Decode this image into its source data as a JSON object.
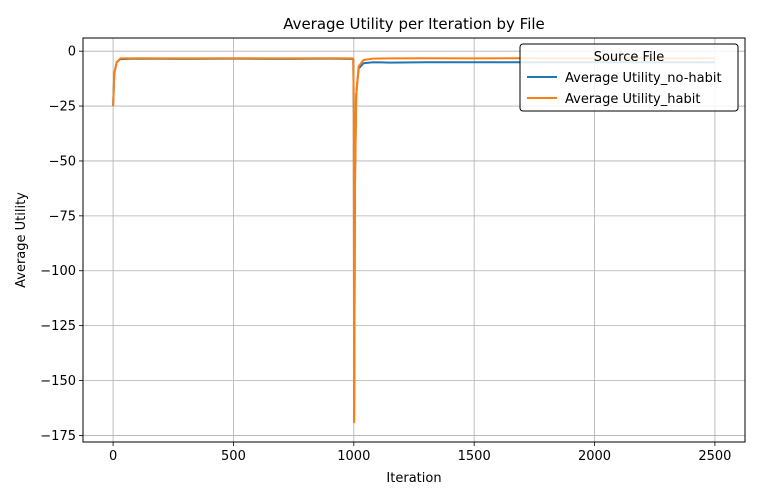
{
  "chart_data": {
    "type": "line",
    "title": "Average Utility per Iteration by File",
    "xlabel": "Iteration",
    "ylabel": "Average Utility",
    "xlim": [
      -125,
      2625
    ],
    "ylim": [
      -178,
      6
    ],
    "xticks": [
      0,
      500,
      1000,
      1500,
      2000,
      2500
    ],
    "yticks": [
      0,
      -25,
      -50,
      -75,
      -100,
      -125,
      -150,
      -175
    ],
    "grid": true,
    "legend": {
      "title": "Source File",
      "placement": "top-right"
    },
    "series": [
      {
        "name": "Average Utility_no-habit",
        "color": "#1f77b4",
        "x": [
          0,
          5,
          15,
          30,
          100,
          300,
          500,
          700,
          900,
          990,
          995,
          998,
          1000,
          1001,
          1003,
          1005,
          1010,
          1020,
          1040,
          1080,
          1150,
          1300,
          1500,
          1700,
          1900,
          2100,
          2300,
          2500
        ],
        "y": [
          -25,
          -10,
          -5,
          -3.6,
          -3.4,
          -3.5,
          -3.4,
          -3.5,
          -3.4,
          -3.5,
          -3.6,
          -3.6,
          -30,
          -168,
          -120,
          -60,
          -20,
          -8,
          -5.5,
          -5.0,
          -5.2,
          -5.0,
          -5.0,
          -5.0,
          -5.0,
          -5.0,
          -5.0,
          -5.0
        ]
      },
      {
        "name": "Average Utility_habit",
        "color": "#ff7f0e",
        "x": [
          0,
          5,
          15,
          30,
          100,
          300,
          500,
          700,
          900,
          990,
          995,
          998,
          1000,
          1001,
          1003,
          1005,
          1010,
          1020,
          1040,
          1080,
          1150,
          1300,
          1500,
          1700,
          1900,
          2100,
          2300,
          2500
        ],
        "y": [
          -25,
          -10,
          -5,
          -3.3,
          -3.2,
          -3.3,
          -3.2,
          -3.3,
          -3.2,
          -3.3,
          -3.4,
          -3.4,
          -30,
          -169,
          -120,
          -60,
          -20,
          -7,
          -4,
          -3.4,
          -3.3,
          -3.2,
          -3.3,
          -3.2,
          -3.3,
          -3.2,
          -3.3,
          -3.2
        ]
      }
    ]
  }
}
